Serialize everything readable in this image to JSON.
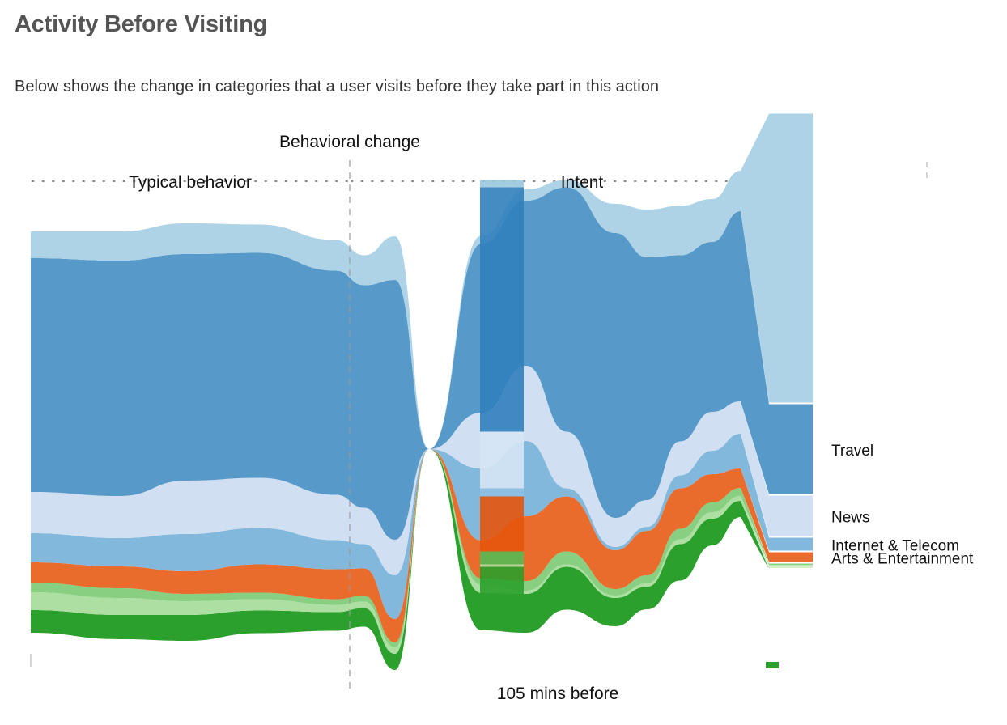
{
  "header": {
    "title": "Activity Before Visiting",
    "subtitle": "Below shows the change in categories that a user visits before they take part in this action"
  },
  "annotations": {
    "change_label": "Behavioral change",
    "typical_label": "Typical behavior",
    "intent_label": "Intent",
    "hover_label": "105 mins before"
  },
  "colors": {
    "background": "#ffffff",
    "title": "#555555",
    "guide": "#999999"
  },
  "chart_data": {
    "type": "area",
    "stacking": "stream",
    "title": "",
    "xlabel": "",
    "ylabel": "",
    "x": [
      0,
      1,
      2,
      3,
      4,
      5,
      6,
      7,
      8,
      9,
      10,
      11,
      12,
      13,
      14,
      15,
      16
    ],
    "highlight_index": 10,
    "behavioral_change_index": 7,
    "series": [
      {
        "name": "",
        "color": "#2ca02c",
        "highlight_color": "#2ca02c",
        "values": [
          28,
          30,
          32,
          28,
          23,
          23,
          20,
          0,
          46,
          48,
          53,
          35,
          28,
          45,
          33,
          20,
          2
        ]
      },
      {
        "name": "",
        "color": "#addfa3",
        "highlight_color": "#addfa3",
        "values": [
          22,
          21,
          17,
          14,
          9,
          8,
          8,
          0,
          10,
          4,
          3,
          3,
          4,
          6,
          8,
          6,
          3
        ]
      },
      {
        "name": "",
        "color": "#88cf82",
        "highlight_color": "#55bb55",
        "values": [
          12,
          12,
          9,
          8,
          7,
          7,
          6,
          0,
          8,
          12,
          16,
          8,
          10,
          13,
          12,
          10,
          4
        ]
      },
      {
        "name": "Arts & Entertainment",
        "color": "#e96c2c",
        "highlight_color": "#e6550d",
        "values": [
          25,
          27,
          28,
          35,
          37,
          34,
          29,
          0,
          47,
          80,
          68,
          48,
          55,
          50,
          35,
          24,
          14
        ]
      },
      {
        "name": "Internet & Telecom",
        "color": "#82b8dc",
        "highlight_color": "#8cbfe0",
        "values": [
          36,
          35,
          46,
          45,
          36,
          30,
          54,
          0,
          89,
          93,
          10,
          4,
          5,
          16,
          29,
          43,
          18
        ]
      },
      {
        "name": "News",
        "color": "#d0e0f2",
        "highlight_color": "#d6e6f5",
        "values": [
          51,
          52,
          66,
          62,
          56,
          45,
          44,
          0,
          69,
          93,
          70,
          36,
          33,
          42,
          48,
          40,
          52
        ]
      },
      {
        "name": "Travel",
        "color": "#5799c8",
        "highlight_color": "#317fbd",
        "values": [
          289,
          291,
          280,
          278,
          277,
          275,
          321,
          0,
          209,
          204,
          302,
          352,
          300,
          230,
          210,
          235,
          113
        ]
      },
      {
        "name": "",
        "color": "#aed3e6",
        "highlight_color": "#9bc8df",
        "values": [
          33,
          36,
          38,
          35,
          38,
          37,
          54,
          0,
          10,
          14,
          9,
          36,
          59,
          61,
          53,
          50,
          359
        ]
      }
    ]
  }
}
